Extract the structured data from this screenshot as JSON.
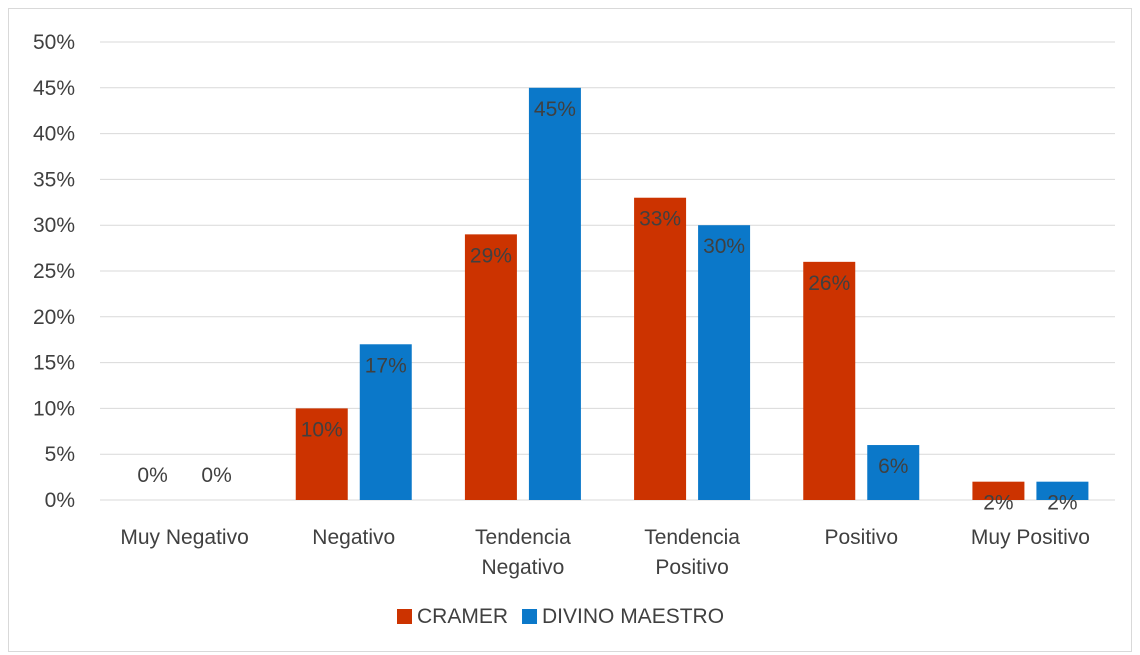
{
  "chart_data": {
    "type": "bar",
    "categories": [
      [
        "Muy Negativo"
      ],
      [
        "Negativo"
      ],
      [
        "Tendencia",
        "Negativo"
      ],
      [
        "Tendencia",
        "Positivo"
      ],
      [
        "Positivo"
      ],
      [
        "Muy Positivo"
      ]
    ],
    "series": [
      {
        "name": "CRAMER",
        "color": "#cc3300",
        "values": [
          0,
          10,
          29,
          33,
          26,
          2
        ],
        "labels": [
          "0%",
          "10%",
          "29%",
          "33%",
          "26%",
          "2%"
        ]
      },
      {
        "name": "DIVINO MAESTRO",
        "color": "#0b78c9",
        "values": [
          0,
          17,
          45,
          30,
          6,
          2
        ],
        "labels": [
          "0%",
          "17%",
          "45%",
          "30%",
          "6%",
          "2%"
        ]
      }
    ],
    "y_ticks": [
      "0%",
      "5%",
      "10%",
      "15%",
      "20%",
      "25%",
      "30%",
      "35%",
      "40%",
      "45%",
      "50%"
    ],
    "ylim": [
      0,
      50
    ],
    "grid": true,
    "legend_position": "bottom",
    "title": "",
    "xlabel": "",
    "ylabel": ""
  }
}
